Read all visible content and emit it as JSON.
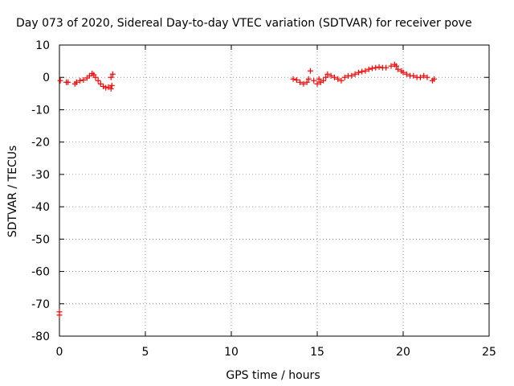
{
  "chart_data": {
    "type": "scatter",
    "title": "Day 073 of 2020, Sidereal Day-to-day VTEC variation (SDTVAR) for receiver pove",
    "xlabel": "GPS time / hours",
    "ylabel": "SDTVAR / TECUs",
    "xlim": [
      0,
      25
    ],
    "ylim": [
      -80,
      10
    ],
    "xticks": [
      0,
      5,
      10,
      15,
      20,
      25
    ],
    "yticks": [
      10,
      0,
      -10,
      -20,
      -30,
      -40,
      -50,
      -60,
      -70,
      -80
    ],
    "grid": true,
    "marker": "plus",
    "color": "#ff0000",
    "series": [
      {
        "name": "SDTVAR",
        "x": [
          0.0,
          0.0,
          0.05,
          0.4,
          0.5,
          0.9,
          1.0,
          1.2,
          1.4,
          1.6,
          1.75,
          1.9,
          2.0,
          2.1,
          2.25,
          2.4,
          2.55,
          2.7,
          2.85,
          3.0,
          3.05,
          3.1,
          3.0,
          13.6,
          13.8,
          14.0,
          14.2,
          14.4,
          14.5,
          14.6,
          14.8,
          15.0,
          15.1,
          15.2,
          15.35,
          15.5,
          15.6,
          15.8,
          16.0,
          16.2,
          16.4,
          16.6,
          16.8,
          17.0,
          17.2,
          17.4,
          17.6,
          17.8,
          18.0,
          18.2,
          18.4,
          18.6,
          18.8,
          19.0,
          19.3,
          19.5,
          19.6,
          19.7,
          19.9,
          20.0,
          20.2,
          20.4,
          20.6,
          20.8,
          21.0,
          21.2,
          21.4,
          21.7,
          21.8
        ],
        "y": [
          -73.5,
          -72.5,
          -1.0,
          -1.5,
          -1.5,
          -2.0,
          -1.5,
          -1.0,
          -0.8,
          -0.2,
          0.5,
          1.2,
          0.8,
          0.0,
          -1.0,
          -2.0,
          -2.8,
          -3.2,
          -3.0,
          -3.5,
          -2.5,
          1.0,
          0.0,
          -0.5,
          -0.8,
          -1.5,
          -2.0,
          -1.5,
          -0.5,
          2.0,
          -1.0,
          -2.0,
          -0.5,
          -1.5,
          -1.0,
          0.0,
          1.0,
          0.5,
          0.0,
          -0.5,
          -1.0,
          0.0,
          0.5,
          0.5,
          1.0,
          1.5,
          1.8,
          2.0,
          2.5,
          2.8,
          3.0,
          3.2,
          3.0,
          3.0,
          3.5,
          4.0,
          3.5,
          2.5,
          2.0,
          1.5,
          1.0,
          0.5,
          0.5,
          0.0,
          0.0,
          0.5,
          0.0,
          -1.0,
          -0.5
        ]
      }
    ]
  }
}
